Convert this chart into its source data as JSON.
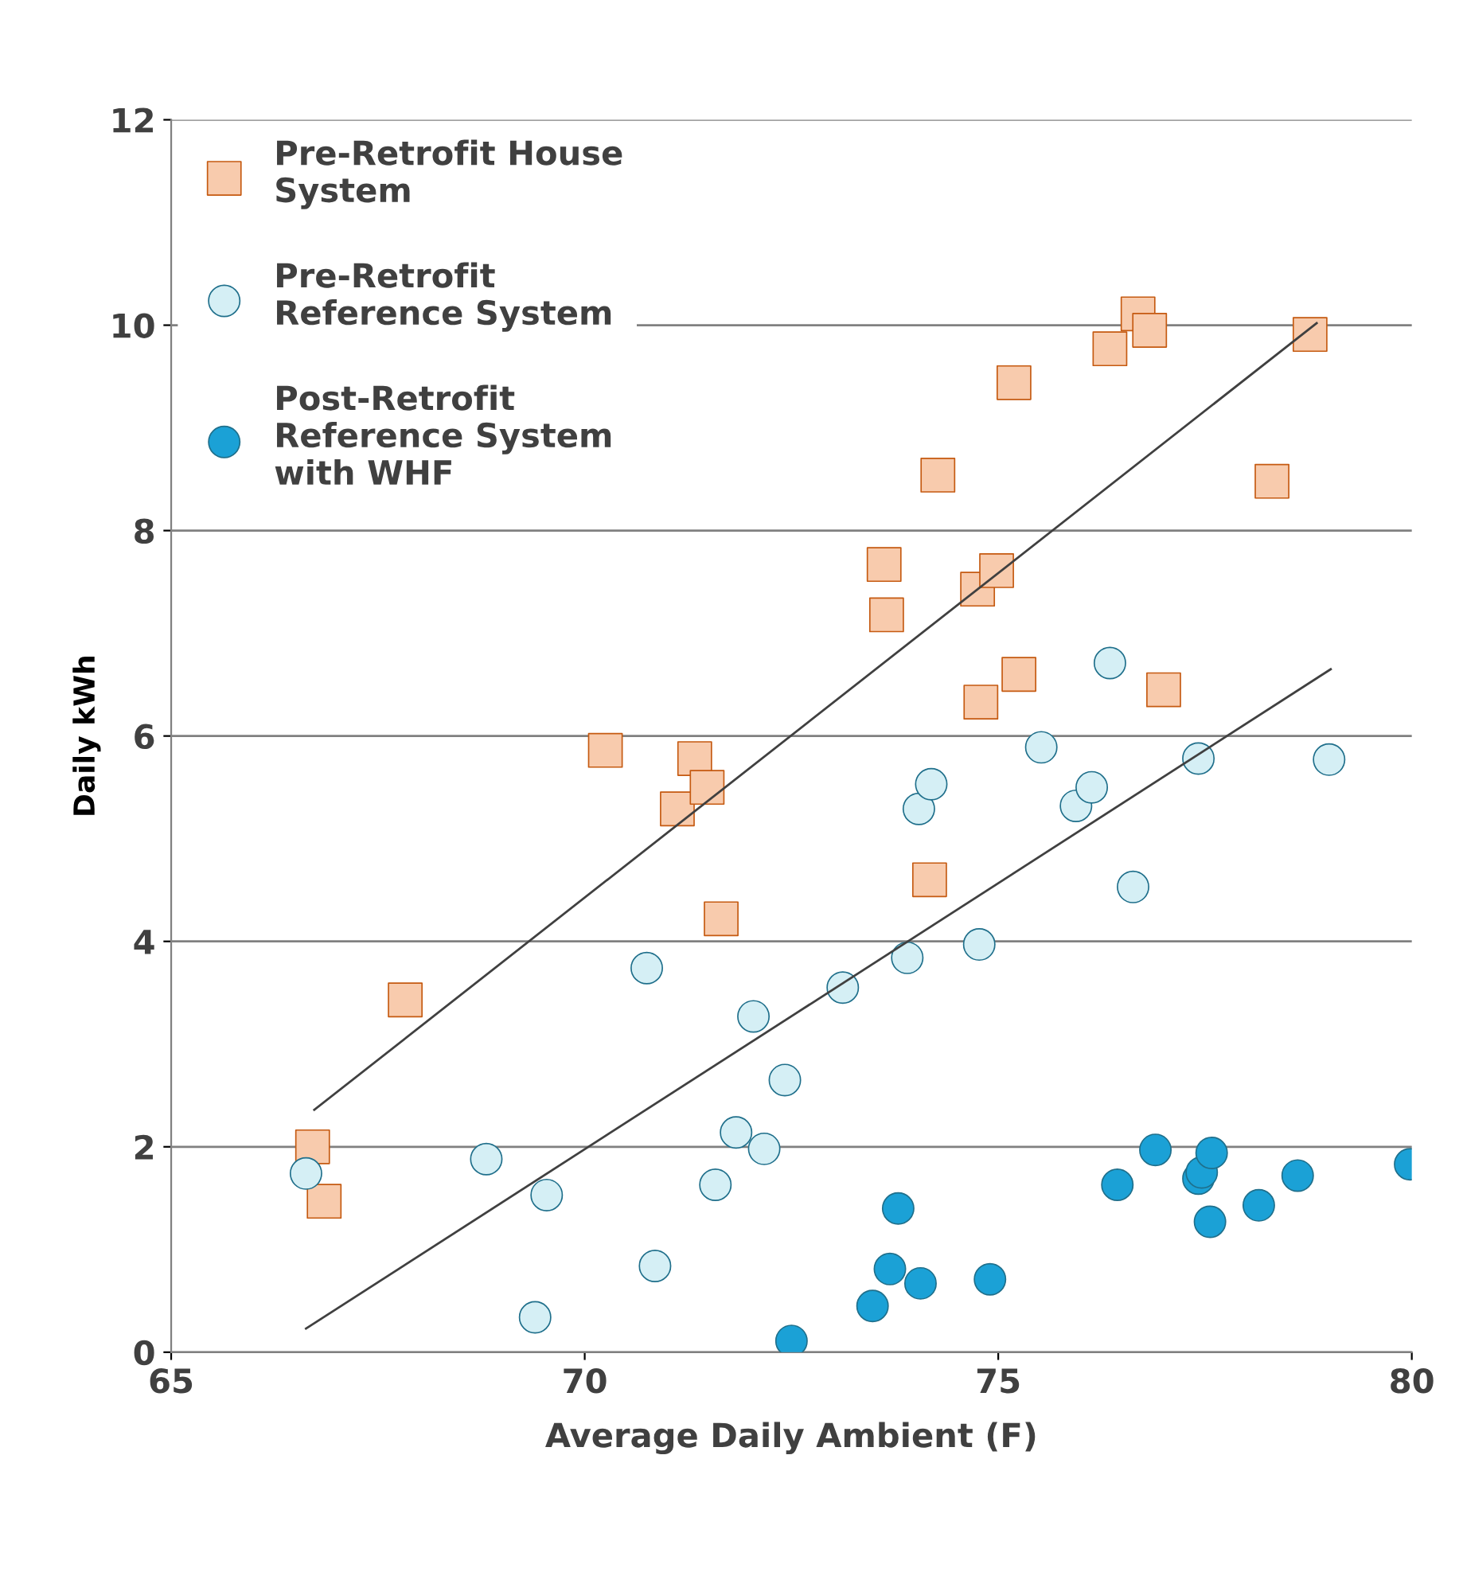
{
  "chart_data": {
    "type": "scatter",
    "xlabel": "Average Daily Ambient (F)",
    "ylabel": "Daily kWh",
    "xlim": [
      65,
      80
    ],
    "xticks": [
      65,
      70,
      75,
      80
    ],
    "ylim": [
      0,
      12
    ],
    "yticks": [
      0,
      2,
      4,
      6,
      8,
      10,
      12
    ],
    "grid": "y",
    "legend": "top left",
    "series": [
      {
        "name": "Pre-Retrofit House\nSystem",
        "color": "#f8cbad",
        "marker": "square",
        "x": [
          66.71,
          66.85,
          67.83,
          70.25,
          71.12,
          71.33,
          71.48,
          71.65,
          73.62,
          73.65,
          74.17,
          74.27,
          74.75,
          74.79,
          74.98,
          75.25,
          75.19,
          76.35,
          76.69,
          76.83,
          77.0,
          78.31,
          78.77
        ],
        "values": [
          2.0,
          1.47,
          3.43,
          5.86,
          5.29,
          5.78,
          5.5,
          4.22,
          7.67,
          7.18,
          4.6,
          8.54,
          7.43,
          6.33,
          7.61,
          6.6,
          9.44,
          9.77,
          10.11,
          9.95,
          6.45,
          8.48,
          9.91
        ]
      },
      {
        "name": "Pre-Retrofit\nReference System",
        "color": "#d5eff5",
        "marker": "circle",
        "x": [
          66.63,
          68.81,
          69.54,
          69.4,
          70.75,
          70.85,
          71.58,
          71.83,
          72.04,
          72.17,
          72.42,
          73.12,
          73.9,
          74.04,
          74.19,
          74.77,
          75.52,
          75.94,
          76.13,
          76.35,
          76.63,
          77.42,
          79.0
        ],
        "values": [
          1.74,
          1.88,
          1.53,
          0.34,
          3.74,
          0.84,
          1.63,
          2.14,
          3.27,
          1.98,
          2.65,
          3.55,
          3.84,
          5.29,
          5.53,
          3.97,
          5.89,
          5.32,
          5.5,
          6.71,
          4.53,
          5.78,
          5.77
        ]
      },
      {
        "name": "Post-Retrofit\nReference System\nwith WHF",
        "color": "#1ba1d6",
        "marker": "circle",
        "x": [
          72.5,
          73.48,
          73.69,
          73.79,
          74.06,
          74.9,
          76.44,
          76.9,
          77.42,
          77.46,
          77.56,
          77.58,
          78.15,
          78.62,
          79.98
        ],
        "values": [
          0.11,
          0.45,
          0.81,
          1.4,
          0.67,
          0.71,
          1.63,
          1.97,
          1.69,
          1.75,
          1.27,
          1.94,
          1.43,
          1.72,
          1.83
        ]
      },
      {
        "type": "line",
        "color": "#404040",
        "x": [
          66.73,
          78.85
        ],
        "values": [
          2.36,
          10.02
        ]
      },
      {
        "type": "line",
        "color": "#404040",
        "x": [
          66.63,
          79.02
        ],
        "values": [
          0.23,
          6.65
        ]
      }
    ]
  }
}
